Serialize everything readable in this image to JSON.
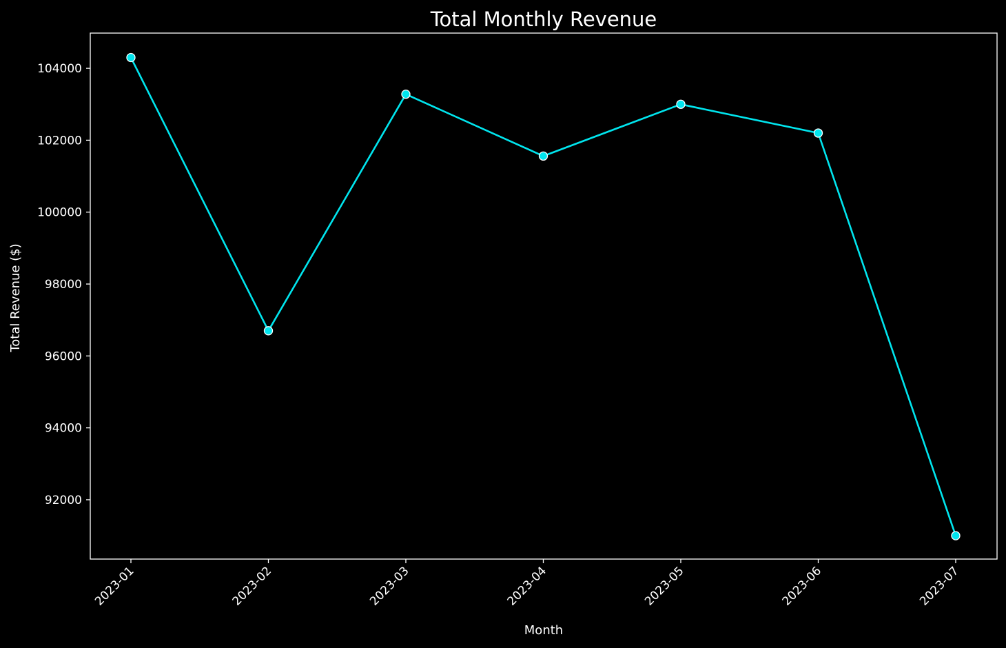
{
  "chart_data": {
    "type": "line",
    "title": "Total Monthly Revenue",
    "xlabel": "Month",
    "ylabel": "Total Revenue ($)",
    "categories": [
      "2023-01",
      "2023-02",
      "2023-03",
      "2023-04",
      "2023-05",
      "2023-06",
      "2023-07"
    ],
    "series": [
      {
        "values": [
          104300,
          96700,
          103280,
          101560,
          103000,
          102200,
          91000
        ],
        "color": "#00e5ee",
        "marker": "circle",
        "marker_edge_color": "#ffffff"
      }
    ],
    "yticks": [
      92000,
      94000,
      96000,
      98000,
      100000,
      102000,
      104000
    ],
    "ylim": [
      90350,
      104980
    ],
    "x_tick_rotation": 45,
    "grid": false,
    "legend": "none",
    "colors": {
      "background": "#000000",
      "axes": "#ffffff",
      "text": "#ffffff"
    }
  }
}
